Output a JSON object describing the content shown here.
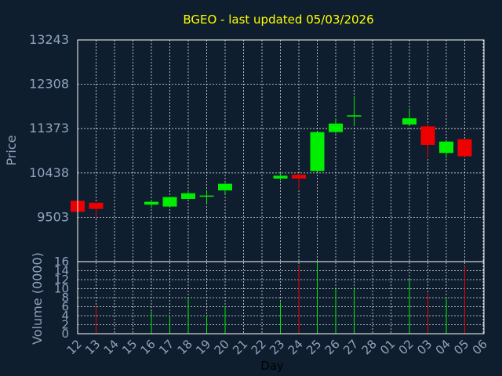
{
  "chart_data": {
    "type": "candlestick",
    "title": "BGEO - last updated 05/03/2026",
    "ylabel": "Price",
    "volume_label": "Volume (0000)",
    "xlabel": "Day",
    "ylim": [
      8568,
      13243
    ],
    "price_ticks": [
      "13243",
      "12308",
      "11373",
      "10438",
      "9503"
    ],
    "price_tick_values": [
      13243,
      12308,
      11373,
      10438,
      9503
    ],
    "volume_ylim": [
      0,
      16
    ],
    "volume_ticks": [
      "16",
      "14",
      "12",
      "10",
      "8",
      "6",
      "4",
      "2",
      "0"
    ],
    "volume_tick_values": [
      16,
      14,
      12,
      10,
      8,
      6,
      4,
      2,
      0
    ],
    "x_ticks": [
      "12",
      "13",
      "14",
      "15",
      "16",
      "17",
      "18",
      "19",
      "20",
      "21",
      "22",
      "23",
      "24",
      "25",
      "26",
      "27",
      "28",
      "01",
      "02",
      "03",
      "04",
      "05",
      "06"
    ],
    "colors": {
      "up": "#00ee00",
      "down": "#ee0000",
      "background": "#0f1e2e",
      "title": "#ffff00",
      "axis_text": "#8fa3bd"
    },
    "candles": [
      {
        "day": "12",
        "open": 9850,
        "close": 9620,
        "high": 9850,
        "low": 9620,
        "volume": 0
      },
      {
        "day": "13",
        "open": 9810,
        "close": 9680,
        "high": 9810,
        "low": 9500,
        "volume": 6
      },
      {
        "day": "16",
        "open": 9770,
        "close": 9830,
        "high": 9870,
        "low": 9700,
        "volume": 5
      },
      {
        "day": "17",
        "open": 9730,
        "close": 9930,
        "high": 9940,
        "low": 9720,
        "volume": 4
      },
      {
        "day": "18",
        "open": 9890,
        "close": 10010,
        "high": 10060,
        "low": 9880,
        "volume": 8
      },
      {
        "day": "19",
        "open": 9950,
        "close": 9950,
        "high": 10080,
        "low": 9790,
        "volume": 4
      },
      {
        "day": "20",
        "open": 10070,
        "close": 10210,
        "high": 10220,
        "low": 10000,
        "volume": 6
      },
      {
        "day": "23",
        "open": 10320,
        "close": 10380,
        "high": 10440,
        "low": 10280,
        "volume": 7
      },
      {
        "day": "24",
        "open": 10400,
        "close": 10320,
        "high": 10420,
        "low": 10100,
        "volume": 15
      },
      {
        "day": "25",
        "open": 10480,
        "close": 11300,
        "high": 11300,
        "low": 10470,
        "volume": 16
      },
      {
        "day": "26",
        "open": 11300,
        "close": 11480,
        "high": 11590,
        "low": 11270,
        "volume": 10
      },
      {
        "day": "27",
        "open": 11640,
        "close": 11640,
        "high": 12040,
        "low": 11430,
        "volume": 10
      },
      {
        "day": "02",
        "open": 11460,
        "close": 11590,
        "high": 11800,
        "low": 11450,
        "volume": 12
      },
      {
        "day": "03",
        "open": 11420,
        "close": 11030,
        "high": 11480,
        "low": 10770,
        "volume": 9
      },
      {
        "day": "04",
        "open": 10860,
        "close": 11100,
        "high": 11120,
        "low": 10750,
        "volume": 8
      },
      {
        "day": "05",
        "open": 11150,
        "close": 10790,
        "high": 11150,
        "low": 10770,
        "volume": 15
      }
    ]
  }
}
